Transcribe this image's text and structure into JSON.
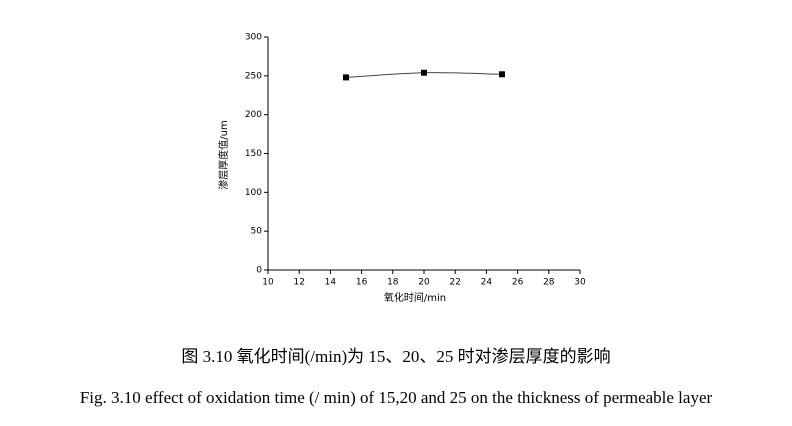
{
  "chart_data": {
    "type": "scatter",
    "x_label": "氧化时间/min",
    "y_label": "渗层厚度值/um",
    "x": [
      15,
      20,
      25
    ],
    "series": [
      {
        "color": "#000000",
        "values": [
          248,
          254,
          252
        ]
      }
    ],
    "xlim": [
      10,
      30
    ],
    "xticks": [
      10,
      12,
      14,
      16,
      18,
      20,
      22,
      24,
      26,
      28,
      30
    ],
    "ylim": [
      0,
      300
    ],
    "yticks": [
      0,
      50,
      100,
      150,
      200,
      250,
      300
    ],
    "captions": [
      "图 3.10  氧化时间(/min)为 15、20、25 时对渗层厚度的影响",
      "Fig. 3.10 effect of oxidation time (/ min) of 15,20 and 25 on the thickness of permeable layer"
    ]
  }
}
